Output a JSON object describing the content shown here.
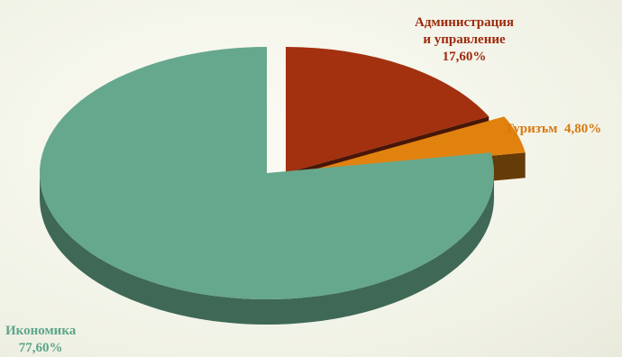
{
  "chart_data": {
    "type": "pie",
    "title": "",
    "slices": [
      {
        "label_lines": [
          "Администрация",
          "и управление"
        ],
        "value": 17.6,
        "display": "17,60%",
        "color": "#a3300f",
        "explode": true
      },
      {
        "label_lines": [
          "Туризъм"
        ],
        "value": 4.8,
        "display": "4,80%",
        "color": "#e1820f",
        "explode": true
      },
      {
        "label_lines": [
          "Икономика"
        ],
        "value": 77.6,
        "display": "77,60%",
        "color": "#66a88d",
        "explode": false
      }
    ],
    "style": "3d-exploded",
    "legend": "none"
  }
}
